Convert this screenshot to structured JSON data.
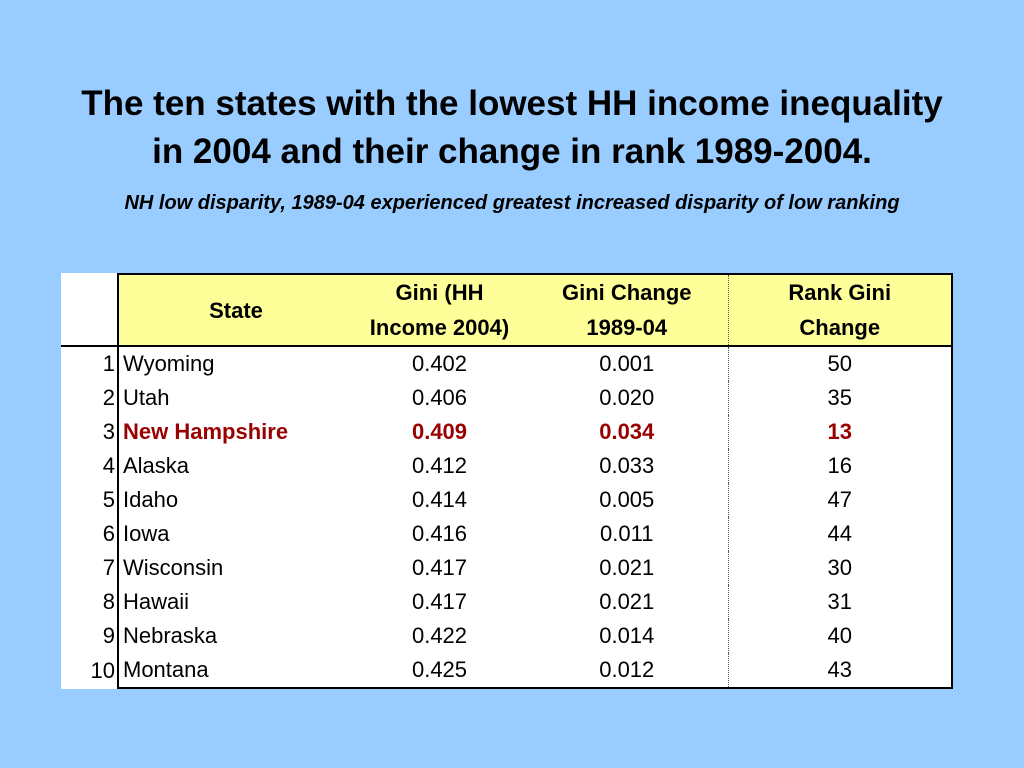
{
  "slide": {
    "title_line1": "The ten states with the lowest HH income inequality",
    "title_line2": "in 2004 and their change in rank 1989-2004.",
    "subtitle": "NH low disparity, 1989-04 experienced greatest increased disparity of low ranking"
  },
  "table": {
    "headers": {
      "state": "State",
      "gini_line1": "Gini (HH",
      "gini_line2": "Income 2004)",
      "change_line1": "Gini Change",
      "change_line2": "1989-04",
      "rank_line1": "Rank Gini",
      "rank_line2": "Change"
    },
    "highlight_color": "#990000",
    "header_color": "#ffff99",
    "rows": [
      {
        "idx": "1",
        "state": "Wyoming",
        "gini": "0.402",
        "change": "0.001",
        "rank": "50",
        "highlight": false
      },
      {
        "idx": "2",
        "state": "Utah",
        "gini": "0.406",
        "change": "0.020",
        "rank": "35",
        "highlight": false
      },
      {
        "idx": "3",
        "state": "New Hampshire",
        "gini": "0.409",
        "change": "0.034",
        "rank": "13",
        "highlight": true
      },
      {
        "idx": "4",
        "state": "Alaska",
        "gini": "0.412",
        "change": "0.033",
        "rank": "16",
        "highlight": false
      },
      {
        "idx": "5",
        "state": "Idaho",
        "gini": "0.414",
        "change": "0.005",
        "rank": "47",
        "highlight": false
      },
      {
        "idx": "6",
        "state": "Iowa",
        "gini": "0.416",
        "change": "0.011",
        "rank": "44",
        "highlight": false
      },
      {
        "idx": "7",
        "state": "Wisconsin",
        "gini": "0.417",
        "change": "0.021",
        "rank": "30",
        "highlight": false
      },
      {
        "idx": "8",
        "state": "Hawaii",
        "gini": "0.417",
        "change": "0.021",
        "rank": "31",
        "highlight": false
      },
      {
        "idx": "9",
        "state": "Nebraska",
        "gini": "0.422",
        "change": "0.014",
        "rank": "40",
        "highlight": false
      },
      {
        "idx": "10",
        "state": "Montana",
        "gini": "0.425",
        "change": "0.012",
        "rank": "43",
        "highlight": false
      }
    ]
  }
}
